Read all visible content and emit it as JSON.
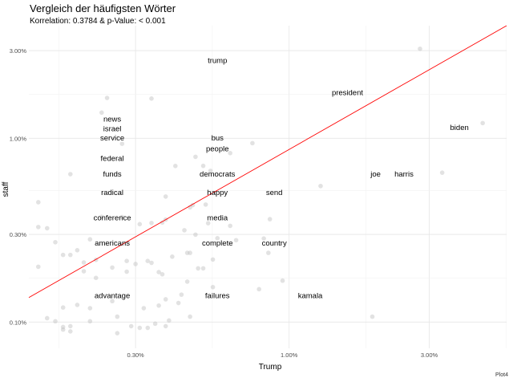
{
  "chart_data": {
    "type": "scatter",
    "title": "Vergleich der häufigsten Wörter",
    "subtitle": "Korrelation: 0.3784  & p-Value: < 0.001",
    "xlabel": "Trump",
    "ylabel": "staff",
    "caption": "Plot4",
    "x_scale": "log",
    "y_scale": "log",
    "xlim": [
      0.0013,
      0.055
    ],
    "ylim": [
      0.00072,
      0.041
    ],
    "x_ticks": [
      {
        "value": 0.003,
        "label": "0.30%"
      },
      {
        "value": 0.01,
        "label": "1.00%"
      },
      {
        "value": 0.03,
        "label": "3.00%"
      }
    ],
    "y_ticks": [
      {
        "value": 0.001,
        "label": "0.10%"
      },
      {
        "value": 0.003,
        "label": "0.30%"
      },
      {
        "value": 0.01,
        "label": "1.00%"
      },
      {
        "value": 0.03,
        "label": "3.00%"
      }
    ],
    "grid": true,
    "point_color": "#bfbfbf",
    "line_color": "#ff0000",
    "regression_line": {
      "x": [
        0.0013,
        0.055
      ],
      "y": [
        0.00136,
        0.041
      ]
    },
    "labeled_words": [
      {
        "word": "trump",
        "x": 0.0057,
        "y": 0.0266
      },
      {
        "word": "president",
        "x": 0.0158,
        "y": 0.0178
      },
      {
        "word": "biden",
        "x": 0.038,
        "y": 0.0115
      },
      {
        "word": "news",
        "x": 0.0025,
        "y": 0.0128
      },
      {
        "word": "israel",
        "x": 0.0025,
        "y": 0.0113
      },
      {
        "word": "service",
        "x": 0.0025,
        "y": 0.0101
      },
      {
        "word": "bus",
        "x": 0.0057,
        "y": 0.0101
      },
      {
        "word": "people",
        "x": 0.0057,
        "y": 0.0088
      },
      {
        "word": "federal",
        "x": 0.0025,
        "y": 0.0078
      },
      {
        "word": "funds",
        "x": 0.0025,
        "y": 0.0064
      },
      {
        "word": "democrats",
        "x": 0.0057,
        "y": 0.0064
      },
      {
        "word": "joe",
        "x": 0.0197,
        "y": 0.0064
      },
      {
        "word": "harris",
        "x": 0.0246,
        "y": 0.0064
      },
      {
        "word": "radical",
        "x": 0.0025,
        "y": 0.0051
      },
      {
        "word": "happy",
        "x": 0.0057,
        "y": 0.0051
      },
      {
        "word": "send",
        "x": 0.0089,
        "y": 0.0051
      },
      {
        "word": "conference",
        "x": 0.0025,
        "y": 0.0037
      },
      {
        "word": "media",
        "x": 0.0057,
        "y": 0.0037
      },
      {
        "word": "americans",
        "x": 0.0025,
        "y": 0.0027
      },
      {
        "word": "complete",
        "x": 0.0057,
        "y": 0.0027
      },
      {
        "word": "country",
        "x": 0.0089,
        "y": 0.0027
      },
      {
        "word": "advantage",
        "x": 0.0025,
        "y": 0.0014
      },
      {
        "word": "failures",
        "x": 0.0057,
        "y": 0.0014
      },
      {
        "word": "kamala",
        "x": 0.0118,
        "y": 0.0014
      }
    ],
    "points": [
      {
        "x": 0.0279,
        "y": 0.0307
      },
      {
        "x": 0.0456,
        "y": 0.0121
      },
      {
        "x": 0.0332,
        "y": 0.0065
      },
      {
        "x": 0.0128,
        "y": 0.0055
      },
      {
        "x": 0.0192,
        "y": 0.00107
      },
      {
        "x": 0.0095,
        "y": 0.00168
      },
      {
        "x": 0.0086,
        "y": 0.00363
      },
      {
        "x": 0.0085,
        "y": 0.00238
      },
      {
        "x": 0.0082,
        "y": 0.00285
      },
      {
        "x": 0.0079,
        "y": 0.00151
      },
      {
        "x": 0.0075,
        "y": 0.00941
      },
      {
        "x": 0.0066,
        "y": 0.00279
      },
      {
        "x": 0.0063,
        "y": 0.00831
      },
      {
        "x": 0.0063,
        "y": 0.00334
      },
      {
        "x": 0.0057,
        "y": 0.00286
      },
      {
        "x": 0.0055,
        "y": 0.00219
      },
      {
        "x": 0.0055,
        "y": 0.00155
      },
      {
        "x": 0.0054,
        "y": 0.00665
      },
      {
        "x": 0.0053,
        "y": 0.00345
      },
      {
        "x": 0.0052,
        "y": 0.00436
      },
      {
        "x": 0.0051,
        "y": 0.00708
      },
      {
        "x": 0.0051,
        "y": 0.00196
      },
      {
        "x": 0.0049,
        "y": 0.00196
      },
      {
        "x": 0.0048,
        "y": 0.00793
      },
      {
        "x": 0.0048,
        "y": 0.00299
      },
      {
        "x": 0.0047,
        "y": 0.00433
      },
      {
        "x": 0.0046,
        "y": 0.00421
      },
      {
        "x": 0.0046,
        "y": 0.00238
      },
      {
        "x": 0.0046,
        "y": 0.00107
      },
      {
        "x": 0.0045,
        "y": 0.00238
      },
      {
        "x": 0.0045,
        "y": 0.00166
      },
      {
        "x": 0.0044,
        "y": 0.00316
      },
      {
        "x": 0.0043,
        "y": 0.00141
      },
      {
        "x": 0.0042,
        "y": 0.00127
      },
      {
        "x": 0.0041,
        "y": 0.00707
      },
      {
        "x": 0.004,
        "y": 0.00227
      },
      {
        "x": 0.0039,
        "y": 0.00102
      },
      {
        "x": 0.0038,
        "y": 0.00482
      },
      {
        "x": 0.0038,
        "y": 0.00361
      },
      {
        "x": 0.0038,
        "y": 0.00133
      },
      {
        "x": 0.0038,
        "y": 0.00095
      },
      {
        "x": 0.0037,
        "y": 0.00348
      },
      {
        "x": 0.0037,
        "y": 0.00182
      },
      {
        "x": 0.0036,
        "y": 0.00187
      },
      {
        "x": 0.0036,
        "y": 0.00123
      },
      {
        "x": 0.0035,
        "y": 0.00098
      },
      {
        "x": 0.0034,
        "y": 0.01645
      },
      {
        "x": 0.0034,
        "y": 0.00346
      },
      {
        "x": 0.0034,
        "y": 0.0021
      },
      {
        "x": 0.0033,
        "y": 0.00215
      },
      {
        "x": 0.0033,
        "y": 0.00093
      },
      {
        "x": 0.0032,
        "y": 0.00119
      },
      {
        "x": 0.0031,
        "y": 0.00341
      },
      {
        "x": 0.0031,
        "y": 0.00093
      },
      {
        "x": 0.003,
        "y": 0.00207
      },
      {
        "x": 0.0029,
        "y": 0.00095
      },
      {
        "x": 0.0028,
        "y": 0.00215
      },
      {
        "x": 0.0028,
        "y": 0.00188
      },
      {
        "x": 0.0027,
        "y": 0.00934
      },
      {
        "x": 0.0027,
        "y": 0.00373
      },
      {
        "x": 0.0026,
        "y": 0.00107
      },
      {
        "x": 0.0026,
        "y": 0.00087
      },
      {
        "x": 0.0025,
        "y": 0.00198
      },
      {
        "x": 0.0025,
        "y": 0.0013
      },
      {
        "x": 0.0024,
        "y": 0.01658
      },
      {
        "x": 0.0023,
        "y": 0.00374
      },
      {
        "x": 0.0022,
        "y": 0.00218
      },
      {
        "x": 0.0022,
        "y": 0.00174
      },
      {
        "x": 0.0021,
        "y": 0.00282
      },
      {
        "x": 0.0021,
        "y": 0.00119
      },
      {
        "x": 0.0021,
        "y": 0.00101
      },
      {
        "x": 0.002,
        "y": 0.00211
      },
      {
        "x": 0.002,
        "y": 0.00189
      },
      {
        "x": 0.0019,
        "y": 0.00246
      },
      {
        "x": 0.0019,
        "y": 0.00124
      },
      {
        "x": 0.0018,
        "y": 0.00638
      },
      {
        "x": 0.0018,
        "y": 0.00232
      },
      {
        "x": 0.0018,
        "y": 0.00095
      },
      {
        "x": 0.0018,
        "y": 0.00089
      },
      {
        "x": 0.0017,
        "y": 0.00232
      },
      {
        "x": 0.0017,
        "y": 0.00094
      },
      {
        "x": 0.0017,
        "y": 0.00091
      },
      {
        "x": 0.0017,
        "y": 0.0012
      },
      {
        "x": 0.0016,
        "y": 0.00101
      },
      {
        "x": 0.0016,
        "y": 0.00272
      },
      {
        "x": 0.0015,
        "y": 0.00324
      },
      {
        "x": 0.0015,
        "y": 0.00105
      },
      {
        "x": 0.0014,
        "y": 0.00329
      },
      {
        "x": 0.0014,
        "y": 0.00449
      },
      {
        "x": 0.0014,
        "y": 0.002
      },
      {
        "x": 0.0023,
        "y": 0.0138
      }
    ]
  }
}
